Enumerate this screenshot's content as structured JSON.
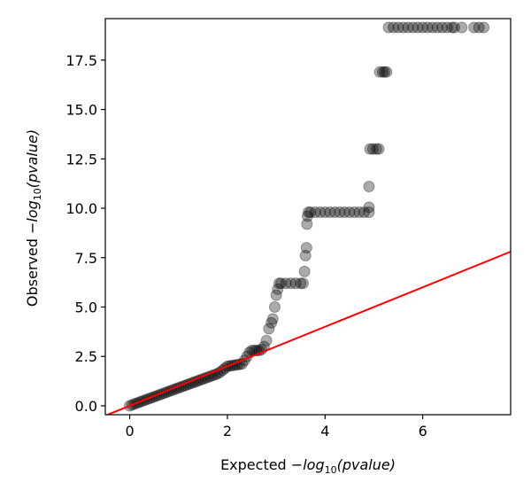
{
  "chart_data": {
    "type": "scatter",
    "xlabel": {
      "prefix": "Expected ",
      "minus": "−",
      "log": "log",
      "base": "10",
      "arg": "(pvalue)"
    },
    "ylabel": {
      "prefix": "Observed ",
      "minus": "−",
      "log": "log",
      "base": "10",
      "arg": "(pvalue)"
    },
    "xlim": [
      -0.5,
      7.8
    ],
    "ylim": [
      -0.45,
      19.6
    ],
    "xticks": [
      "0",
      "2",
      "4",
      "6"
    ],
    "yticks": [
      "0.0",
      "2.5",
      "5.0",
      "7.5",
      "10.0",
      "12.5",
      "15.0",
      "17.5"
    ],
    "grid": false,
    "point_color": "#000000",
    "point_alpha": 0.33,
    "reference_line": {
      "color": "#ff0000",
      "slope": 1,
      "intercept": 0
    },
    "series": [
      {
        "points": [
          [
            0.0,
            0.0
          ],
          [
            0.05,
            0.05
          ],
          [
            0.1,
            0.1
          ],
          [
            0.15,
            0.14
          ],
          [
            0.2,
            0.19
          ],
          [
            0.25,
            0.23
          ],
          [
            0.3,
            0.28
          ],
          [
            0.35,
            0.32
          ],
          [
            0.4,
            0.37
          ],
          [
            0.45,
            0.41
          ],
          [
            0.5,
            0.46
          ],
          [
            0.55,
            0.5
          ],
          [
            0.6,
            0.55
          ],
          [
            0.65,
            0.59
          ],
          [
            0.7,
            0.64
          ],
          [
            0.75,
            0.68
          ],
          [
            0.8,
            0.73
          ],
          [
            0.85,
            0.77
          ],
          [
            0.9,
            0.82
          ],
          [
            0.95,
            0.86
          ],
          [
            1.0,
            0.91
          ],
          [
            1.05,
            0.95
          ],
          [
            1.1,
            1.0
          ],
          [
            1.15,
            1.04
          ],
          [
            1.2,
            1.09
          ],
          [
            1.25,
            1.13
          ],
          [
            1.3,
            1.18
          ],
          [
            1.35,
            1.22
          ],
          [
            1.4,
            1.27
          ],
          [
            1.45,
            1.31
          ],
          [
            1.5,
            1.36
          ],
          [
            1.55,
            1.4
          ],
          [
            1.6,
            1.45
          ],
          [
            1.65,
            1.49
          ],
          [
            1.7,
            1.54
          ],
          [
            1.75,
            1.58
          ],
          [
            1.8,
            1.63
          ],
          [
            1.85,
            1.7
          ],
          [
            1.9,
            1.8
          ],
          [
            1.95,
            1.9
          ],
          [
            2.0,
            2.0
          ],
          [
            2.05,
            2.02
          ],
          [
            2.1,
            2.04
          ],
          [
            2.15,
            2.06
          ],
          [
            2.2,
            2.08
          ],
          [
            2.25,
            2.1
          ],
          [
            2.3,
            2.12
          ],
          [
            2.35,
            2.3
          ],
          [
            2.4,
            2.5
          ],
          [
            2.45,
            2.7
          ],
          [
            2.5,
            2.8
          ],
          [
            2.55,
            2.8
          ],
          [
            2.6,
            2.8
          ],
          [
            2.65,
            2.8
          ],
          [
            2.7,
            2.85
          ],
          [
            2.75,
            3.0
          ],
          [
            2.8,
            3.3
          ],
          [
            2.85,
            3.9
          ],
          [
            2.9,
            4.2
          ],
          [
            2.93,
            4.4
          ],
          [
            2.97,
            5.0
          ],
          [
            3.0,
            5.6
          ],
          [
            3.03,
            5.9
          ],
          [
            3.06,
            6.2
          ],
          [
            3.1,
            6.2
          ],
          [
            3.2,
            6.2
          ],
          [
            3.3,
            6.2
          ],
          [
            3.4,
            6.2
          ],
          [
            3.5,
            6.2
          ],
          [
            3.55,
            6.2
          ],
          [
            3.58,
            6.8
          ],
          [
            3.6,
            7.6
          ],
          [
            3.62,
            8.0
          ],
          [
            3.63,
            9.2
          ],
          [
            3.64,
            9.6
          ],
          [
            3.66,
            9.8
          ],
          [
            3.7,
            9.8
          ],
          [
            3.8,
            9.8
          ],
          [
            3.9,
            9.8
          ],
          [
            4.0,
            9.8
          ],
          [
            4.1,
            9.8
          ],
          [
            4.2,
            9.8
          ],
          [
            4.3,
            9.8
          ],
          [
            4.4,
            9.8
          ],
          [
            4.5,
            9.8
          ],
          [
            4.6,
            9.8
          ],
          [
            4.7,
            9.8
          ],
          [
            4.8,
            9.8
          ],
          [
            4.9,
            9.8
          ],
          [
            4.9,
            10.05
          ],
          [
            4.9,
            11.1
          ],
          [
            4.92,
            13.0
          ],
          [
            4.98,
            13.0
          ],
          [
            5.05,
            13.0
          ],
          [
            5.1,
            13.0
          ],
          [
            5.12,
            16.9
          ],
          [
            5.18,
            16.9
          ],
          [
            5.22,
            16.9
          ],
          [
            5.26,
            16.9
          ],
          [
            5.3,
            19.15
          ],
          [
            5.4,
            19.15
          ],
          [
            5.5,
            19.15
          ],
          [
            5.6,
            19.15
          ],
          [
            5.7,
            19.15
          ],
          [
            5.8,
            19.15
          ],
          [
            5.9,
            19.15
          ],
          [
            6.0,
            19.15
          ],
          [
            6.1,
            19.15
          ],
          [
            6.2,
            19.15
          ],
          [
            6.3,
            19.15
          ],
          [
            6.4,
            19.15
          ],
          [
            6.5,
            19.15
          ],
          [
            6.6,
            19.15
          ],
          [
            6.65,
            19.15
          ],
          [
            6.8,
            19.15
          ],
          [
            7.05,
            19.15
          ],
          [
            7.15,
            19.15
          ],
          [
            7.25,
            19.15
          ]
        ]
      }
    ]
  }
}
